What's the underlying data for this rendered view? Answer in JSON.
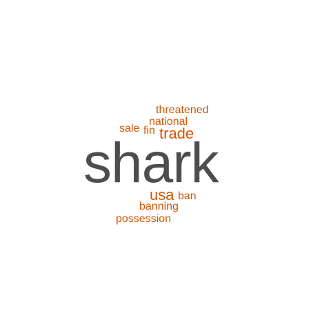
{
  "words": {
    "shark": "shark",
    "threatened": "threatened",
    "national": "national",
    "sale": "sale",
    "fin": "fin",
    "trade": "trade",
    "usa": "usa",
    "ban": "ban",
    "banning": "banning",
    "possession": "possession"
  },
  "colors": {
    "background": "#ffffff",
    "primary_word": "#4d4d4d",
    "secondary_word": "#d35400"
  }
}
